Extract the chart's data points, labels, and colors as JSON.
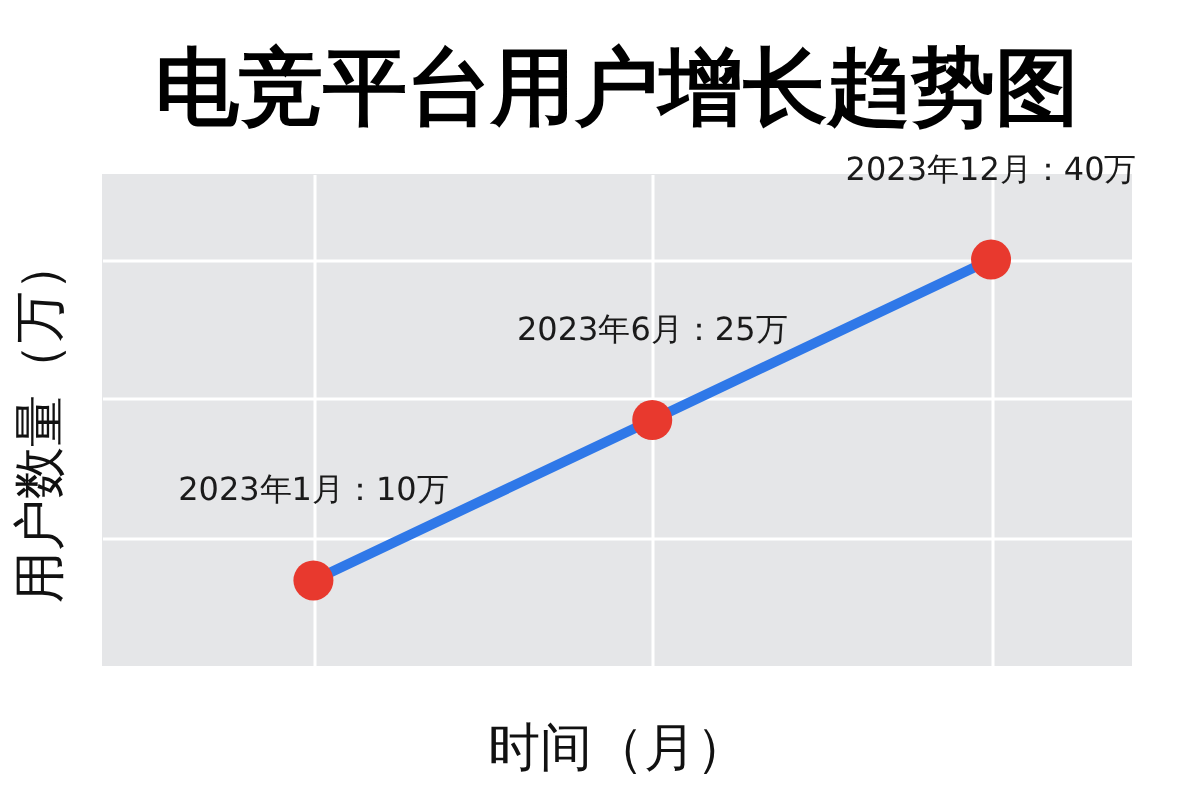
{
  "chart_data": {
    "type": "line",
    "title": "电竞平台用户增长趋势图",
    "xlabel": "时间（月）",
    "ylabel": "用户数量（万）",
    "categories": [
      null,
      null,
      null
    ],
    "values": [
      10,
      25,
      40
    ],
    "value_labels": [
      "2023年1月：10万",
      "2023年6月：25万",
      "2023年12月：40万"
    ],
    "color": "#2f78e8",
    "colors": [
      "#e8392e",
      "#e8392e",
      "#e8392e"
    ],
    "marker": "circle",
    "line_style": "solid",
    "ylim": [
      2,
      48
    ],
    "yticks": [
      {
        "value": 14,
        "label": null
      },
      {
        "value": 27,
        "label": null
      },
      {
        "value": 40,
        "label": null
      }
    ],
    "grid": true,
    "tick_labels": false
  }
}
